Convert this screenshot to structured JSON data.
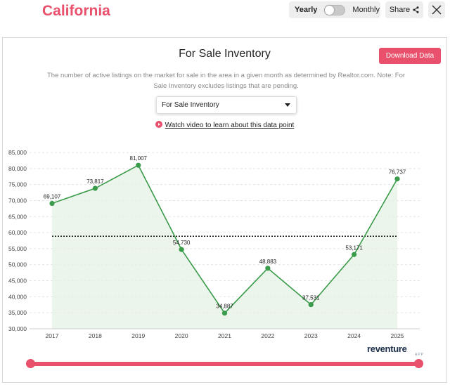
{
  "header": {
    "title": "California",
    "toggle": {
      "left_label": "Yearly",
      "right_label": "Monthly",
      "selected": "Yearly"
    },
    "share_label": "Share"
  },
  "card": {
    "title": "For Sale Inventory",
    "download_label": "Download Data",
    "description": "The number of active listings on the market for sale in the area in a given month as determined by Realtor.com. Note: For Sale Inventory excludes listings that are pending.",
    "select_value": "For Sale Inventory",
    "video_link": "Watch video to learn about this data point"
  },
  "brand": {
    "logo": "reventure",
    "logo_sub": "APP"
  },
  "colors": {
    "accent": "#e8506b",
    "line": "#3a9b4a",
    "fill": "#e6f2e4",
    "avg_line": "#111111"
  },
  "chart_data": {
    "type": "area",
    "x": [
      "2017",
      "2018",
      "2019",
      "2020",
      "2021",
      "2022",
      "2023",
      "2024",
      "2025"
    ],
    "values": [
      69107,
      73817,
      81007,
      54730,
      34887,
      48883,
      37531,
      53171,
      76737
    ],
    "data_labels": [
      "69,107",
      "73,817",
      "81,007",
      "54,730",
      "34,887",
      "48,883",
      "37,531",
      "53,171",
      "76,737"
    ],
    "y_ticks": [
      "85,000",
      "80,000",
      "75,000",
      "70,000",
      "65,000",
      "60,000",
      "55,000",
      "50,000",
      "45,000",
      "40,000",
      "35,000",
      "30,000"
    ],
    "ylim": [
      30000,
      85000
    ],
    "reference_line": 58875,
    "grid": true,
    "title": "",
    "xlabel": "",
    "ylabel": ""
  },
  "slider": {
    "range_start": "2017",
    "range_end": "2025"
  }
}
